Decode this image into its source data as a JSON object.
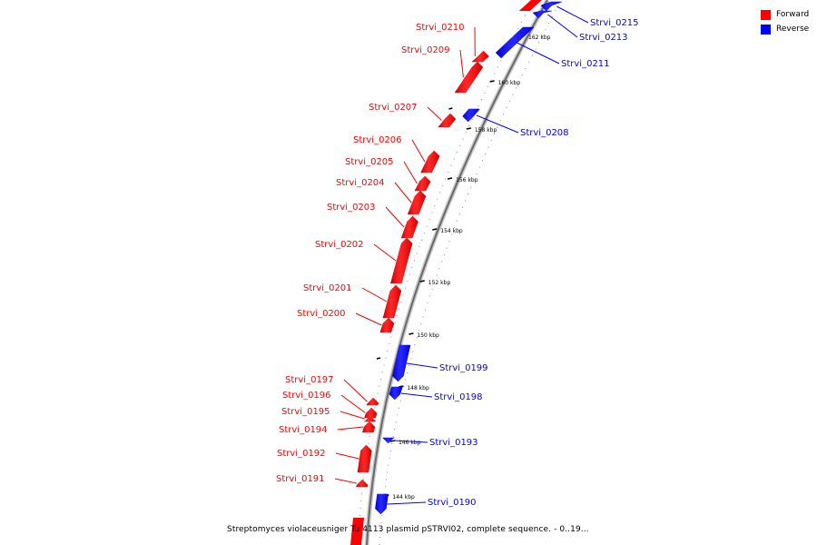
{
  "legend": {
    "forward_label": "Forward",
    "reverse_label": "Reverse",
    "forward_color": "#ff0000",
    "reverse_color": "#0000ff"
  },
  "caption": "Streptomyces violaceusniger Tu 4113 plasmid pSTRVI02, complete sequence. - 0..19...",
  "scale_ticks": [
    "144 kbp",
    "146 kbp",
    "148 kbp",
    "150 kbp",
    "152 kbp",
    "154 kbp",
    "156 kbp",
    "158 kbp",
    "160 kbp",
    "162 kbp"
  ],
  "genes_forward": [
    "Strvi_0191",
    "Strvi_0192",
    "Strvi_0194",
    "Strvi_0195",
    "Strvi_0196",
    "Strvi_0197",
    "Strvi_0200",
    "Strvi_0201",
    "Strvi_0202",
    "Strvi_0203",
    "Strvi_0204",
    "Strvi_0205",
    "Strvi_0206",
    "Strvi_0207",
    "Strvi_0209",
    "Strvi_0210"
  ],
  "genes_reverse": [
    "Strvi_0190",
    "Strvi_0193",
    "Strvi_0198",
    "Strvi_0199",
    "Strvi_0208",
    "Strvi_0211",
    "Strvi_0213",
    "Strvi_0215"
  ]
}
